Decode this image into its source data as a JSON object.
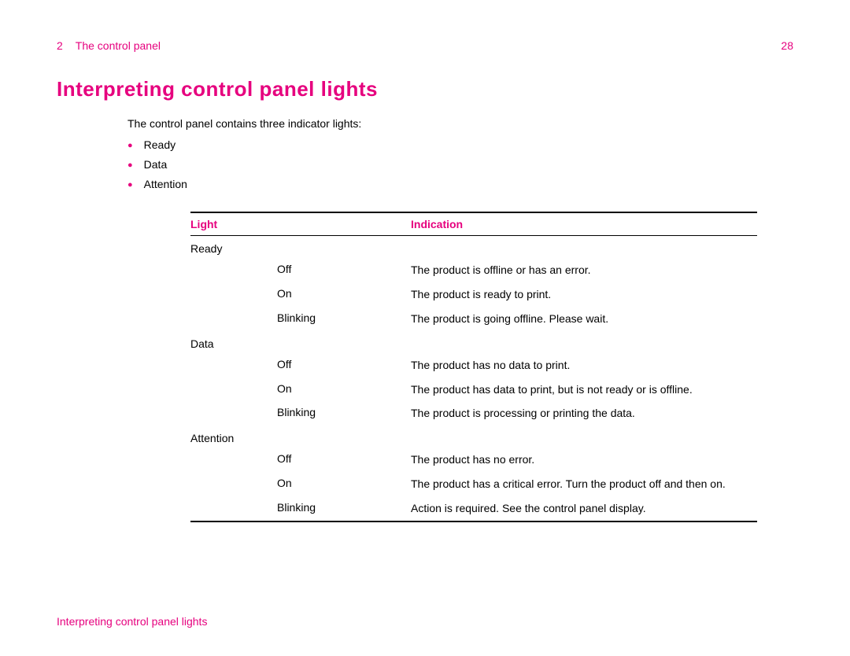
{
  "colors": {
    "accent": "#e6007e",
    "text": "#000000",
    "background": "#ffffff",
    "rule": "#000000"
  },
  "header": {
    "chapter_number": "2",
    "chapter_title": "The control panel",
    "page_number": "28"
  },
  "section_title": "Interpreting control panel lights",
  "intro_text": "The control panel contains three indicator lights:",
  "bullets": [
    "Ready",
    "Data",
    "Attention"
  ],
  "table": {
    "columns": [
      "Light",
      "Indication"
    ],
    "groups": [
      {
        "name": "Ready",
        "rows": [
          {
            "state": "Off",
            "desc": "The product is offline or has an error."
          },
          {
            "state": "On",
            "desc": "The product is ready to print."
          },
          {
            "state": "Blinking",
            "desc": "The product is going offline. Please wait."
          }
        ]
      },
      {
        "name": "Data",
        "rows": [
          {
            "state": "Off",
            "desc": "The product has no data to print."
          },
          {
            "state": "On",
            "desc": "The product has data to print, but is not ready or is offline."
          },
          {
            "state": "Blinking",
            "desc": "The product is processing or printing the data."
          }
        ]
      },
      {
        "name": "Attention",
        "rows": [
          {
            "state": "Off",
            "desc": "The product has no error."
          },
          {
            "state": "On",
            "desc": "The product has a critical error. Turn the product off and then on."
          },
          {
            "state": "Blinking",
            "desc": "Action is required. See the control panel display."
          }
        ]
      }
    ]
  },
  "footer_text": "Interpreting control panel lights"
}
